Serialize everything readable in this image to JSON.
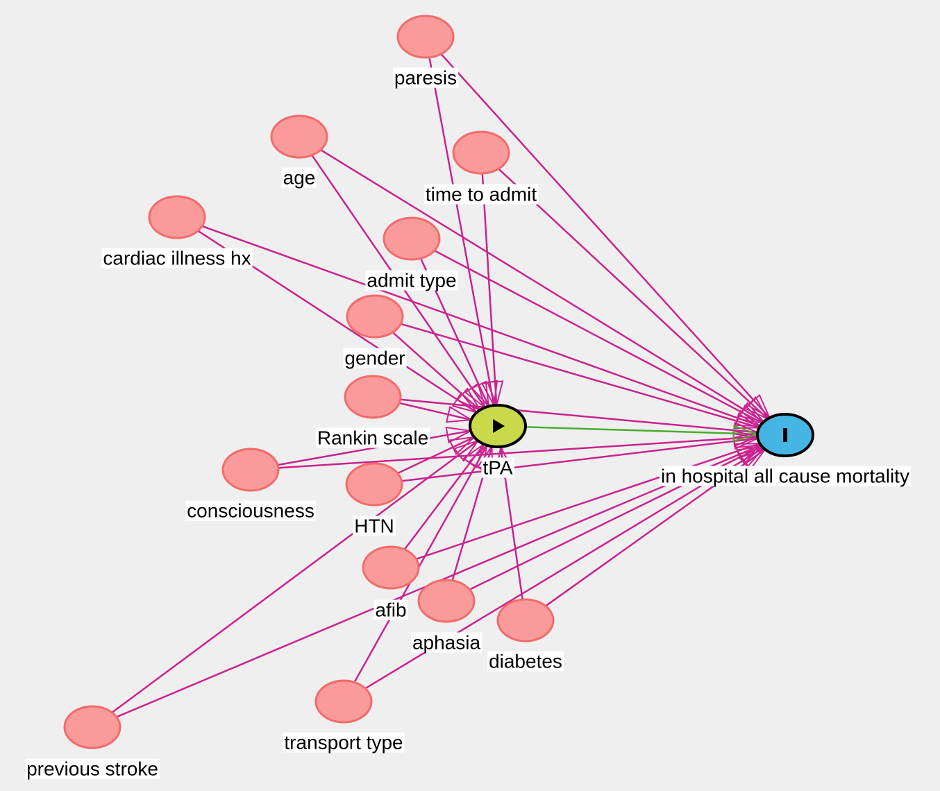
{
  "colors": {
    "background": "#efefef",
    "edge": "#c9238f",
    "causal_edge": "#4aad2c",
    "covariate_fill": "#fa9a9a",
    "covariate_stroke": "#f26b6b",
    "exposure_fill": "#c9d94a",
    "outcome_fill": "#45b6e3",
    "node_outline": "#000000"
  },
  "nodes": [
    {
      "id": "paresis",
      "label": "paresis",
      "role": "adjusted"
    },
    {
      "id": "age",
      "label": "age",
      "role": "adjusted"
    },
    {
      "id": "time_to_admit",
      "label": "time to admit",
      "role": "adjusted"
    },
    {
      "id": "cardiac_illness_hx",
      "label": "cardiac illness hx",
      "role": "adjusted"
    },
    {
      "id": "admit_type",
      "label": "admit type",
      "role": "adjusted"
    },
    {
      "id": "gender",
      "label": "gender",
      "role": "adjusted"
    },
    {
      "id": "rankin_scale",
      "label": "Rankin scale",
      "role": "adjusted"
    },
    {
      "id": "consciousness",
      "label": "consciousness",
      "role": "adjusted"
    },
    {
      "id": "htn",
      "label": "HTN",
      "role": "adjusted"
    },
    {
      "id": "afib",
      "label": "afib",
      "role": "adjusted"
    },
    {
      "id": "aphasia",
      "label": "aphasia",
      "role": "adjusted"
    },
    {
      "id": "diabetes",
      "label": "diabetes",
      "role": "adjusted"
    },
    {
      "id": "transport_type",
      "label": "transport type",
      "role": "adjusted"
    },
    {
      "id": "previous_stroke",
      "label": "previous stroke",
      "role": "adjusted"
    },
    {
      "id": "tpa",
      "label": "tPA",
      "role": "exposure",
      "icon": "play-icon"
    },
    {
      "id": "mortality",
      "label": "in hospital all cause mortality",
      "role": "outcome",
      "icon": "outcome-bar-icon"
    }
  ],
  "edges": [
    {
      "from": "paresis",
      "to": "tpa"
    },
    {
      "from": "paresis",
      "to": "mortality"
    },
    {
      "from": "age",
      "to": "tpa"
    },
    {
      "from": "age",
      "to": "mortality"
    },
    {
      "from": "time_to_admit",
      "to": "tpa"
    },
    {
      "from": "time_to_admit",
      "to": "mortality"
    },
    {
      "from": "cardiac_illness_hx",
      "to": "tpa"
    },
    {
      "from": "cardiac_illness_hx",
      "to": "mortality"
    },
    {
      "from": "admit_type",
      "to": "tpa"
    },
    {
      "from": "admit_type",
      "to": "mortality"
    },
    {
      "from": "gender",
      "to": "tpa"
    },
    {
      "from": "gender",
      "to": "mortality"
    },
    {
      "from": "rankin_scale",
      "to": "tpa"
    },
    {
      "from": "rankin_scale",
      "to": "mortality"
    },
    {
      "from": "consciousness",
      "to": "tpa"
    },
    {
      "from": "consciousness",
      "to": "mortality"
    },
    {
      "from": "htn",
      "to": "tpa"
    },
    {
      "from": "htn",
      "to": "mortality"
    },
    {
      "from": "afib",
      "to": "tpa"
    },
    {
      "from": "afib",
      "to": "mortality"
    },
    {
      "from": "aphasia",
      "to": "tpa"
    },
    {
      "from": "aphasia",
      "to": "mortality"
    },
    {
      "from": "diabetes",
      "to": "tpa"
    },
    {
      "from": "diabetes",
      "to": "mortality"
    },
    {
      "from": "transport_type",
      "to": "tpa"
    },
    {
      "from": "transport_type",
      "to": "mortality"
    },
    {
      "from": "previous_stroke",
      "to": "tpa"
    },
    {
      "from": "previous_stroke",
      "to": "mortality"
    },
    {
      "from": "tpa",
      "to": "mortality",
      "causal": true
    }
  ]
}
